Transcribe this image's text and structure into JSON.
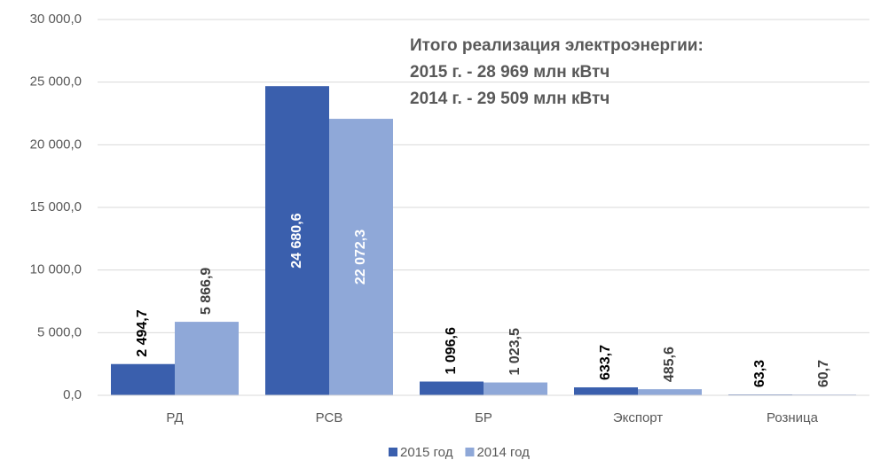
{
  "chart_data": {
    "type": "bar",
    "annotation": [
      "Итого реализация электроэнергии:",
      "2015 г. - 28 969 млн кВтч",
      "2014 г. - 29 509 млн кВтч"
    ],
    "categories": [
      "РД",
      "РСВ",
      "БР",
      "Экспорт",
      "Розница"
    ],
    "series": [
      {
        "name": "2015 год",
        "color": "#3a5fad",
        "values": [
          2494.7,
          24680.6,
          1096.6,
          633.7,
          63.3
        ],
        "value_labels": [
          "2 494,7",
          "24 680,6",
          "1 096,6",
          "633,7",
          "63,3"
        ]
      },
      {
        "name": "2014 год",
        "color": "#8fa8d8",
        "values": [
          5866.9,
          22072.3,
          1023.5,
          485.6,
          60.7
        ],
        "value_labels": [
          "5 866,9",
          "22 072,3",
          "1 023,5",
          "485,6",
          "60,7"
        ]
      }
    ],
    "ylim": [
      0,
      30000
    ],
    "yticks": [
      {
        "value": 0,
        "label": "0,0"
      },
      {
        "value": 5000,
        "label": "5 000,0"
      },
      {
        "value": 10000,
        "label": "10 000,0"
      },
      {
        "value": 15000,
        "label": "15 000,0"
      },
      {
        "value": 20000,
        "label": "20 000,0"
      },
      {
        "value": 25000,
        "label": "25 000,0"
      },
      {
        "value": 30000,
        "label": "30 000,0"
      }
    ],
    "grid": true,
    "legend": "bottom"
  }
}
